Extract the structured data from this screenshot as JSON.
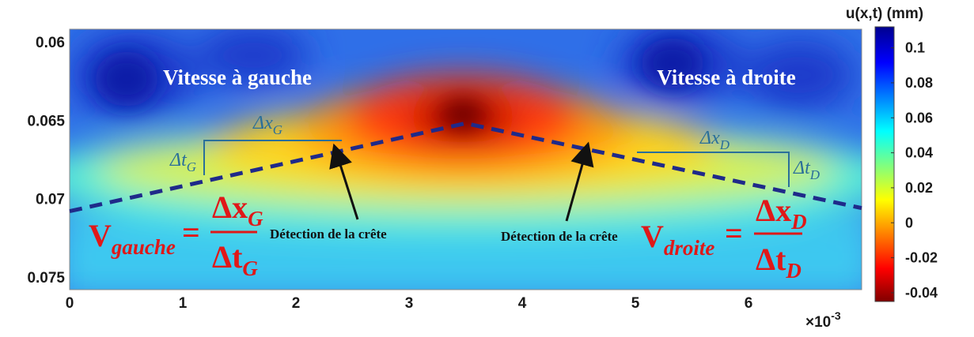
{
  "chart_data": {
    "type": "heatmap",
    "title": "",
    "xlabel": "",
    "ylabel": "",
    "x_ticks": [
      "0",
      "1",
      "2",
      "3",
      "4",
      "5",
      "6"
    ],
    "x_exponent": "×10",
    "x_exponent_power": "-3",
    "y_ticks": [
      "0.06",
      "0.065",
      "0.07",
      "0.075"
    ],
    "xlim": [
      0,
      0.007
    ],
    "ylim": [
      0.0592,
      0.0758
    ],
    "y_reversed": true,
    "colorbar": {
      "title": "u(x,t) (mm)",
      "ticks": [
        "0.1",
        "0.08",
        "0.06",
        "0.04",
        "0.02",
        "0",
        "-0.02",
        "-0.04"
      ],
      "range": [
        -0.045,
        0.112
      ],
      "colormap": "jet",
      "direction": "low-dark-red-at-bottom"
    },
    "crest_line": {
      "style": "dashed",
      "color": "#1f2a8a",
      "x": [
        0,
        0.0035,
        0.007
      ],
      "y": [
        0.0708,
        0.0652,
        0.0706
      ]
    },
    "annotations": {
      "left_title": "Vitesse à gauche",
      "right_title": "Vitesse à droite",
      "detection_left": "Détection de la crête",
      "detection_right": "Détection de la crête",
      "dx_left": {
        "label": "Δx",
        "sub": "G"
      },
      "dt_left": {
        "label": "Δt",
        "sub": "G"
      },
      "dx_right": {
        "label": "Δx",
        "sub": "D"
      },
      "dt_right": {
        "label": "Δt",
        "sub": "D"
      },
      "formula_left": {
        "lhs": "V",
        "lhs_sub": "gauche",
        "eq": "=",
        "num": "Δx",
        "num_sub": "G",
        "den": "Δt",
        "den_sub": "G"
      },
      "formula_right": {
        "lhs": "V",
        "lhs_sub": "droite",
        "eq": "=",
        "num": "Δx",
        "num_sub": "D",
        "den": "Δt",
        "den_sub": "D"
      }
    }
  }
}
